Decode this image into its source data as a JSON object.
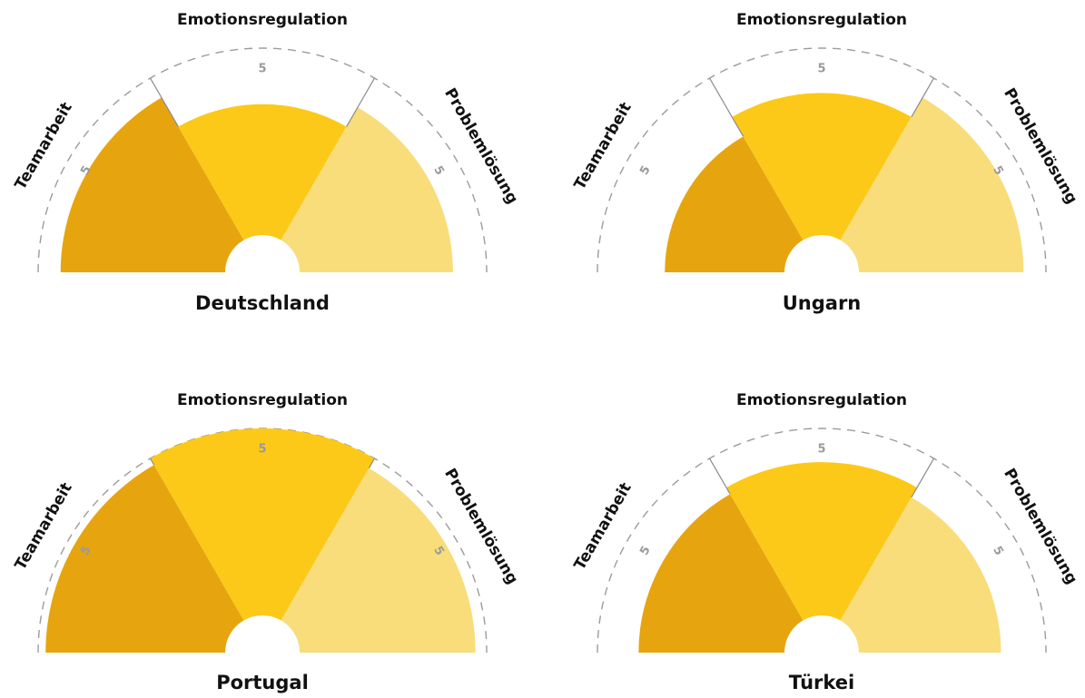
{
  "colors": {
    "background": "#ffffff",
    "title": "#111111",
    "tick": "#9a9a9a",
    "ring": "#9c9c9c"
  },
  "chart_data": [
    {
      "type": "polar-area",
      "title": "Deutschland",
      "categories": [
        "Teamarbeit",
        "Emotionsregulation",
        "Problemlösung"
      ],
      "colors": [
        "#e6a50f",
        "#fcc918",
        "#f8dd7a"
      ],
      "values": [
        4.4,
        3.5,
        4.1
      ],
      "max": 5,
      "tick_labels": [
        "5",
        "5",
        "5"
      ]
    },
    {
      "type": "polar-area",
      "title": "Ungarn",
      "categories": [
        "Teamarbeit",
        "Emotionsregulation",
        "Problemlösung"
      ],
      "colors": [
        "#e6a50f",
        "#fcc918",
        "#f8dd7a"
      ],
      "values": [
        3.2,
        3.8,
        4.4
      ],
      "max": 5,
      "tick_labels": [
        "5",
        "5",
        "5"
      ]
    },
    {
      "type": "polar-area",
      "title": "Portugal",
      "categories": [
        "Teamarbeit",
        "Emotionsregulation",
        "Problemlösung"
      ],
      "colors": [
        "#e6a50f",
        "#fcc918",
        "#f8dd7a"
      ],
      "values": [
        4.8,
        5.0,
        4.7
      ],
      "max": 5,
      "tick_labels": [
        "5",
        "5",
        "5"
      ]
    },
    {
      "type": "polar-area",
      "title": "Türkei",
      "categories": [
        "Teamarbeit",
        "Emotionsregulation",
        "Problemlösung"
      ],
      "colors": [
        "#e6a50f",
        "#fcc918",
        "#f8dd7a"
      ],
      "values": [
        3.9,
        4.1,
        3.8
      ],
      "max": 5,
      "tick_labels": [
        "5",
        "5",
        "5"
      ]
    }
  ]
}
